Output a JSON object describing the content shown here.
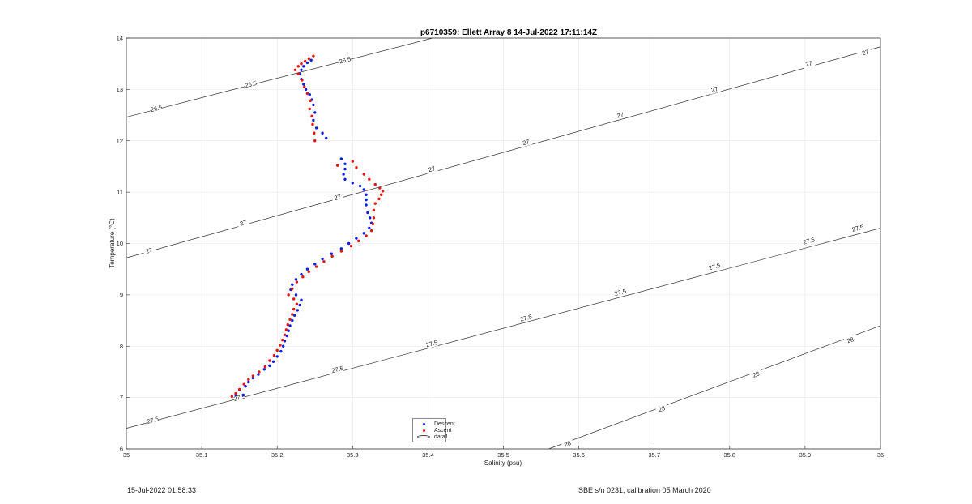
{
  "chart_data": {
    "type": "scatter",
    "title": "p6710359: Ellett Array 8 14-Jul-2022 17:11:14Z",
    "xlabel": "Salinity (psu)",
    "ylabel": "Temperature (°C)",
    "xlim": [
      35,
      36
    ],
    "ylim": [
      6,
      14
    ],
    "xticks": [
      "35",
      "35.1",
      "35.2",
      "35.3",
      "35.4",
      "35.5",
      "35.6",
      "35.7",
      "35.8",
      "35.9",
      "36"
    ],
    "yticks": [
      "6",
      "7",
      "8",
      "9",
      "10",
      "11",
      "12",
      "13",
      "14"
    ],
    "grid": true,
    "legend_position": "bottom-center",
    "contours": [
      {
        "level": "26.5",
        "points": [
          [
            35.0,
            12.46
          ],
          [
            35.406,
            14.0
          ]
        ],
        "labels": [
          [
            35.04,
            12.63
          ],
          [
            35.165,
            13.1
          ],
          [
            35.29,
            13.57
          ]
        ]
      },
      {
        "level": "27",
        "points": [
          [
            35.0,
            9.72
          ],
          [
            36.0,
            13.83
          ]
        ],
        "labels": [
          [
            35.03,
            9.86
          ],
          [
            35.155,
            10.4
          ],
          [
            35.28,
            10.9
          ],
          [
            35.405,
            11.45
          ],
          [
            35.53,
            11.97
          ],
          [
            35.655,
            12.5
          ],
          [
            35.78,
            13.0
          ],
          [
            35.905,
            13.5
          ],
          [
            35.98,
            13.72
          ]
        ]
      },
      {
        "level": "27.5",
        "points": [
          [
            35.0,
            6.4
          ],
          [
            36.0,
            10.3
          ]
        ],
        "labels": [
          [
            35.035,
            6.56
          ],
          [
            35.15,
            7.0
          ],
          [
            35.28,
            7.55
          ],
          [
            35.405,
            8.05
          ],
          [
            35.53,
            8.55
          ],
          [
            35.655,
            9.05
          ],
          [
            35.78,
            9.55
          ],
          [
            35.905,
            10.05
          ],
          [
            35.97,
            10.3
          ]
        ]
      },
      {
        "level": "28",
        "points": [
          [
            35.56,
            6.0
          ],
          [
            36.0,
            8.4
          ]
        ],
        "labels": [
          [
            35.585,
            6.1
          ],
          [
            35.71,
            6.78
          ],
          [
            35.835,
            7.45
          ],
          [
            35.96,
            8.12
          ]
        ]
      }
    ],
    "series": [
      {
        "name": "Descent",
        "color": "#0a1ee6",
        "points": [
          [
            35.245,
            13.57
          ],
          [
            35.24,
            13.52
          ],
          [
            35.235,
            13.45
          ],
          [
            35.232,
            13.38
          ],
          [
            35.23,
            13.3
          ],
          [
            35.232,
            13.2
          ],
          [
            35.235,
            13.1
          ],
          [
            35.238,
            13.0
          ],
          [
            35.243,
            12.9
          ],
          [
            35.246,
            12.8
          ],
          [
            35.248,
            12.7
          ],
          [
            35.25,
            12.55
          ],
          [
            35.248,
            12.4
          ],
          [
            35.252,
            12.25
          ],
          [
            35.26,
            12.15
          ],
          [
            35.265,
            12.05
          ],
          [
            35.285,
            11.65
          ],
          [
            35.29,
            11.55
          ],
          [
            35.29,
            11.45
          ],
          [
            35.288,
            11.35
          ],
          [
            35.29,
            11.25
          ],
          [
            35.3,
            11.18
          ],
          [
            35.31,
            11.12
          ],
          [
            35.315,
            11.05
          ],
          [
            35.318,
            10.95
          ],
          [
            35.318,
            10.85
          ],
          [
            35.318,
            10.75
          ],
          [
            35.32,
            10.6
          ],
          [
            35.323,
            10.5
          ],
          [
            35.325,
            10.4
          ],
          [
            35.322,
            10.3
          ],
          [
            35.315,
            10.2
          ],
          [
            35.305,
            10.1
          ],
          [
            35.295,
            10.0
          ],
          [
            35.285,
            9.9
          ],
          [
            35.272,
            9.8
          ],
          [
            35.26,
            9.7
          ],
          [
            35.25,
            9.6
          ],
          [
            35.24,
            9.5
          ],
          [
            35.232,
            9.4
          ],
          [
            35.225,
            9.3
          ],
          [
            35.22,
            9.2
          ],
          [
            35.218,
            9.1
          ],
          [
            35.225,
            9.0
          ],
          [
            35.232,
            8.9
          ],
          [
            35.23,
            8.8
          ],
          [
            35.227,
            8.7
          ],
          [
            35.223,
            8.6
          ],
          [
            35.22,
            8.5
          ],
          [
            35.217,
            8.4
          ],
          [
            35.215,
            8.3
          ],
          [
            35.213,
            8.2
          ],
          [
            35.21,
            8.1
          ],
          [
            35.208,
            8.0
          ],
          [
            35.205,
            7.9
          ],
          [
            35.2,
            7.8
          ],
          [
            35.195,
            7.7
          ],
          [
            35.19,
            7.62
          ],
          [
            35.183,
            7.55
          ],
          [
            35.175,
            7.45
          ],
          [
            35.168,
            7.38
          ],
          [
            35.162,
            7.3
          ],
          [
            35.158,
            7.22
          ],
          [
            35.15,
            7.15
          ],
          [
            35.145,
            7.05
          ],
          [
            35.155,
            7.05
          ]
        ]
      },
      {
        "name": "Ascent",
        "color": "#e6140a",
        "points": [
          [
            35.248,
            13.65
          ],
          [
            35.242,
            13.6
          ],
          [
            35.237,
            13.55
          ],
          [
            35.232,
            13.5
          ],
          [
            35.228,
            13.45
          ],
          [
            35.224,
            13.38
          ],
          [
            35.228,
            13.3
          ],
          [
            35.233,
            13.18
          ],
          [
            35.236,
            13.05
          ],
          [
            35.24,
            12.92
          ],
          [
            35.244,
            12.78
          ],
          [
            35.243,
            12.62
          ],
          [
            35.246,
            12.48
          ],
          [
            35.247,
            12.32
          ],
          [
            35.249,
            12.15
          ],
          [
            35.25,
            12.0
          ],
          [
            35.28,
            11.52
          ],
          [
            35.3,
            11.6
          ],
          [
            35.305,
            11.48
          ],
          [
            35.315,
            11.35
          ],
          [
            35.322,
            11.25
          ],
          [
            35.33,
            11.15
          ],
          [
            35.336,
            11.08
          ],
          [
            35.34,
            11.02
          ],
          [
            35.338,
            10.95
          ],
          [
            35.335,
            10.87
          ],
          [
            35.33,
            10.78
          ],
          [
            35.328,
            10.65
          ],
          [
            35.328,
            10.5
          ],
          [
            35.327,
            10.38
          ],
          [
            35.325,
            10.25
          ],
          [
            35.318,
            10.15
          ],
          [
            35.308,
            10.05
          ],
          [
            35.298,
            9.95
          ],
          [
            35.285,
            9.85
          ],
          [
            35.273,
            9.75
          ],
          [
            35.262,
            9.65
          ],
          [
            35.252,
            9.55
          ],
          [
            35.242,
            9.45
          ],
          [
            35.234,
            9.35
          ],
          [
            35.226,
            9.25
          ],
          [
            35.22,
            9.12
          ],
          [
            35.215,
            9.0
          ],
          [
            35.222,
            8.92
          ],
          [
            35.226,
            8.82
          ],
          [
            35.222,
            8.72
          ],
          [
            35.22,
            8.62
          ],
          [
            35.217,
            8.52
          ],
          [
            35.214,
            8.42
          ],
          [
            35.212,
            8.32
          ],
          [
            35.21,
            8.22
          ],
          [
            35.207,
            8.12
          ],
          [
            35.204,
            8.02
          ],
          [
            35.2,
            7.92
          ],
          [
            35.196,
            7.82
          ],
          [
            35.19,
            7.72
          ],
          [
            35.184,
            7.6
          ],
          [
            35.176,
            7.5
          ],
          [
            35.168,
            7.42
          ],
          [
            35.162,
            7.35
          ],
          [
            35.156,
            7.26
          ],
          [
            35.15,
            7.16
          ],
          [
            35.145,
            7.08
          ],
          [
            35.14,
            7.02
          ]
        ]
      }
    ],
    "legend": [
      {
        "label": "Descent",
        "kind": "marker",
        "color": "#0a1ee6"
      },
      {
        "label": "Ascent",
        "kind": "marker",
        "color": "#e6140a"
      },
      {
        "label": "data1",
        "kind": "contour",
        "color": "#444444"
      }
    ]
  },
  "footer": {
    "left": "15-Jul-2022 01:58:33",
    "right": "SBE s/n 0231, calibration 05 March 2020"
  }
}
